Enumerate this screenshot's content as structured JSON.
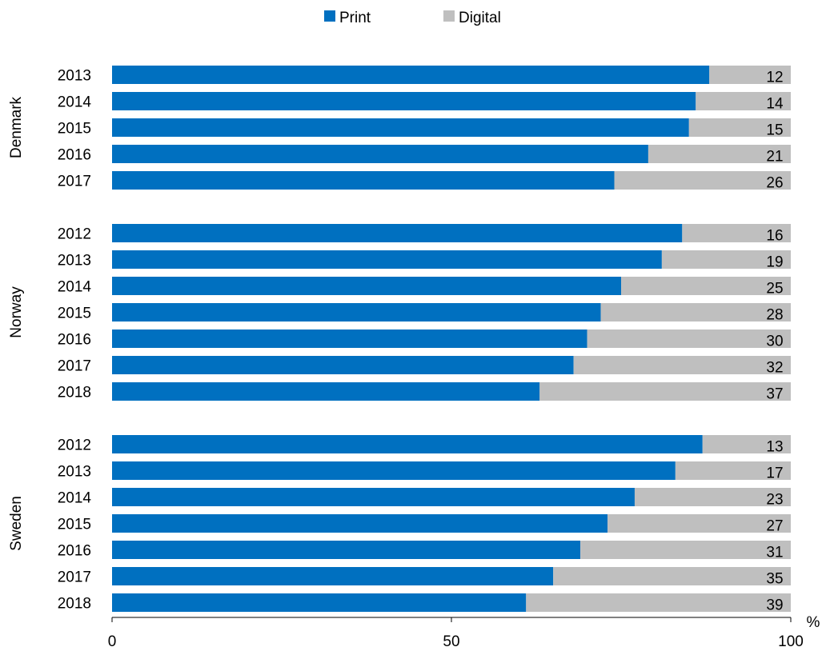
{
  "chart_data": {
    "type": "bar",
    "orientation": "horizontal",
    "stacked": true,
    "legend": {
      "placement": "top-center",
      "entries": [
        "Print",
        "Digital"
      ]
    },
    "colors": {
      "Print": "#0070C0",
      "Digital": "#BFBFBF"
    },
    "xlim": [
      0,
      100
    ],
    "xticks": [
      0,
      50,
      100
    ],
    "x_unit": "%",
    "grid": false,
    "groups": [
      {
        "name": "Denmark",
        "years": [
          "2013",
          "2014",
          "2015",
          "2016",
          "2017"
        ],
        "digital": [
          12,
          14,
          15,
          21,
          26
        ],
        "print": [
          88,
          86,
          85,
          79,
          74
        ]
      },
      {
        "name": "Norway",
        "years": [
          "2012",
          "2013",
          "2014",
          "2015",
          "2016",
          "2017",
          "2018"
        ],
        "digital": [
          16,
          19,
          25,
          28,
          30,
          32,
          37
        ],
        "print": [
          84,
          81,
          75,
          72,
          70,
          68,
          63
        ]
      },
      {
        "name": "Sweden",
        "years": [
          "2012",
          "2013",
          "2014",
          "2015",
          "2016",
          "2017",
          "2018"
        ],
        "digital": [
          13,
          17,
          23,
          27,
          31,
          35,
          39
        ],
        "print": [
          87,
          83,
          77,
          73,
          69,
          65,
          61
        ]
      }
    ]
  }
}
